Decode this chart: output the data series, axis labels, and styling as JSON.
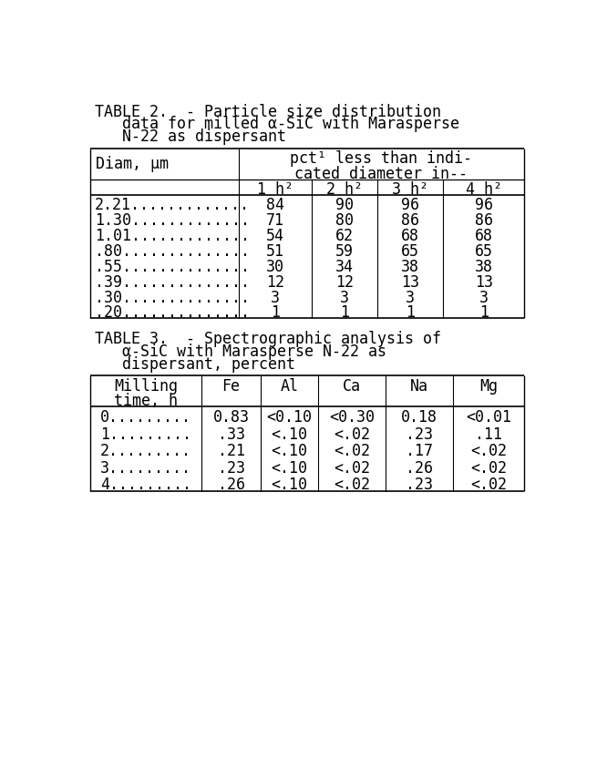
{
  "background_color": "#ffffff",
  "table2": {
    "title_lines": [
      "TABLE 2.  - Particle size distribution",
      "   data for milled α-SiC with Marasperse",
      "   N-22 as dispersant"
    ],
    "header_right_line1": "pct¹ less than indi-",
    "header_right_line2": "cated diameter in--",
    "header_left": "Diam, μm",
    "subheaders": [
      "1 h²",
      "2 h²",
      "3 h²",
      "4 h²"
    ],
    "rows": [
      [
        "2.21.............",
        "84",
        "90",
        "96",
        "96"
      ],
      [
        "1.30.............",
        "71",
        "80",
        "86",
        "86"
      ],
      [
        "1.01.............",
        "54",
        "62",
        "68",
        "68"
      ],
      [
        ".80..............",
        "51",
        "59",
        "65",
        "65"
      ],
      [
        ".55..............",
        "30",
        "34",
        "38",
        "38"
      ],
      [
        ".39..............",
        "12",
        "12",
        "13",
        "13"
      ],
      [
        ".30..............",
        "3",
        "3",
        "3",
        "3"
      ],
      [
        ".20..............",
        "1",
        "1",
        "1",
        "1"
      ]
    ]
  },
  "table3": {
    "title_lines": [
      "TABLE 3.  - Spectrographic analysis of",
      "   α-SiC with Marasperse N-22 as",
      "   dispersant, percent"
    ],
    "header_line1": [
      "Milling",
      "Fe",
      "Al",
      "Ca",
      "Na",
      "Mg"
    ],
    "header_line2": [
      "time, h",
      "",
      "",
      "",
      "",
      ""
    ],
    "rows": [
      [
        "0.........",
        "0.83",
        "<0.10",
        "<0.30",
        "0.18",
        "<0.01"
      ],
      [
        "1.........",
        ".33",
        "<.10",
        "<.02",
        ".23",
        ".11"
      ],
      [
        "2.........",
        ".21",
        "<.10",
        "<.02",
        ".17",
        "<.02"
      ],
      [
        "3.........",
        ".23",
        "<.10",
        "<.02",
        ".26",
        "<.02"
      ],
      [
        "4.........",
        ".26",
        "<.10",
        "<.02",
        ".23",
        "<.02"
      ]
    ]
  },
  "font_size": 12,
  "font_family": "DejaVu Sans Mono"
}
